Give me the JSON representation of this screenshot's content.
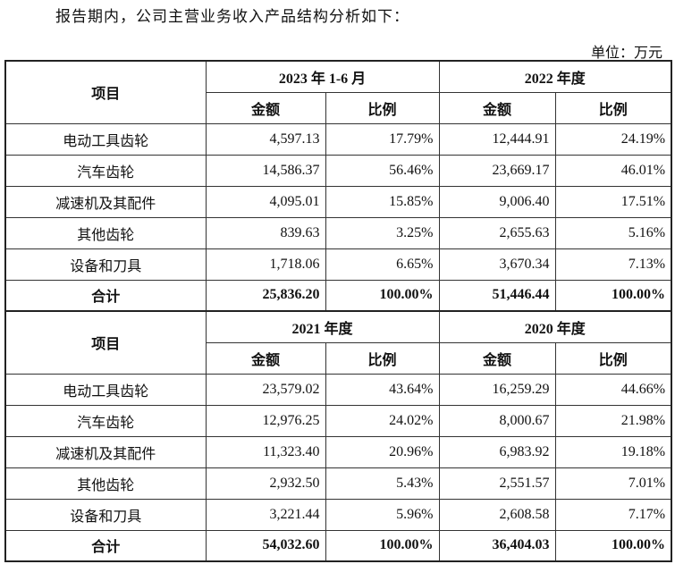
{
  "intro": "报告期内，公司主营业务收入产品结构分析如下：",
  "unit": "单位：万元",
  "tables": [
    {
      "item_header": "项目",
      "periods": [
        "2023 年 1-6 月",
        "2022 年度"
      ],
      "subheaders": [
        "金额",
        "比例",
        "金额",
        "比例"
      ],
      "rows": [
        [
          "电动工具齿轮",
          "4,597.13",
          "17.79%",
          "12,444.91",
          "24.19%"
        ],
        [
          "汽车齿轮",
          "14,586.37",
          "56.46%",
          "23,669.17",
          "46.01%"
        ],
        [
          "减速机及其配件",
          "4,095.01",
          "15.85%",
          "9,006.40",
          "17.51%"
        ],
        [
          "其他齿轮",
          "839.63",
          "3.25%",
          "2,655.63",
          "5.16%"
        ],
        [
          "设备和刀具",
          "1,718.06",
          "6.65%",
          "3,670.34",
          "7.13%"
        ]
      ],
      "total": [
        "合计",
        "25,836.20",
        "100.00%",
        "51,446.44",
        "100.00%"
      ]
    },
    {
      "item_header": "项目",
      "periods": [
        "2021 年度",
        "2020 年度"
      ],
      "subheaders": [
        "金额",
        "比例",
        "金额",
        "比例"
      ],
      "rows": [
        [
          "电动工具齿轮",
          "23,579.02",
          "43.64%",
          "16,259.29",
          "44.66%"
        ],
        [
          "汽车齿轮",
          "12,976.25",
          "24.02%",
          "8,000.67",
          "21.98%"
        ],
        [
          "减速机及其配件",
          "11,323.40",
          "20.96%",
          "6,983.92",
          "19.18%"
        ],
        [
          "其他齿轮",
          "2,932.50",
          "5.43%",
          "2,551.57",
          "7.01%"
        ],
        [
          "设备和刀具",
          "3,221.44",
          "5.96%",
          "2,608.58",
          "7.17%"
        ]
      ],
      "total": [
        "合计",
        "54,032.60",
        "100.00%",
        "36,404.03",
        "100.00%"
      ]
    }
  ]
}
